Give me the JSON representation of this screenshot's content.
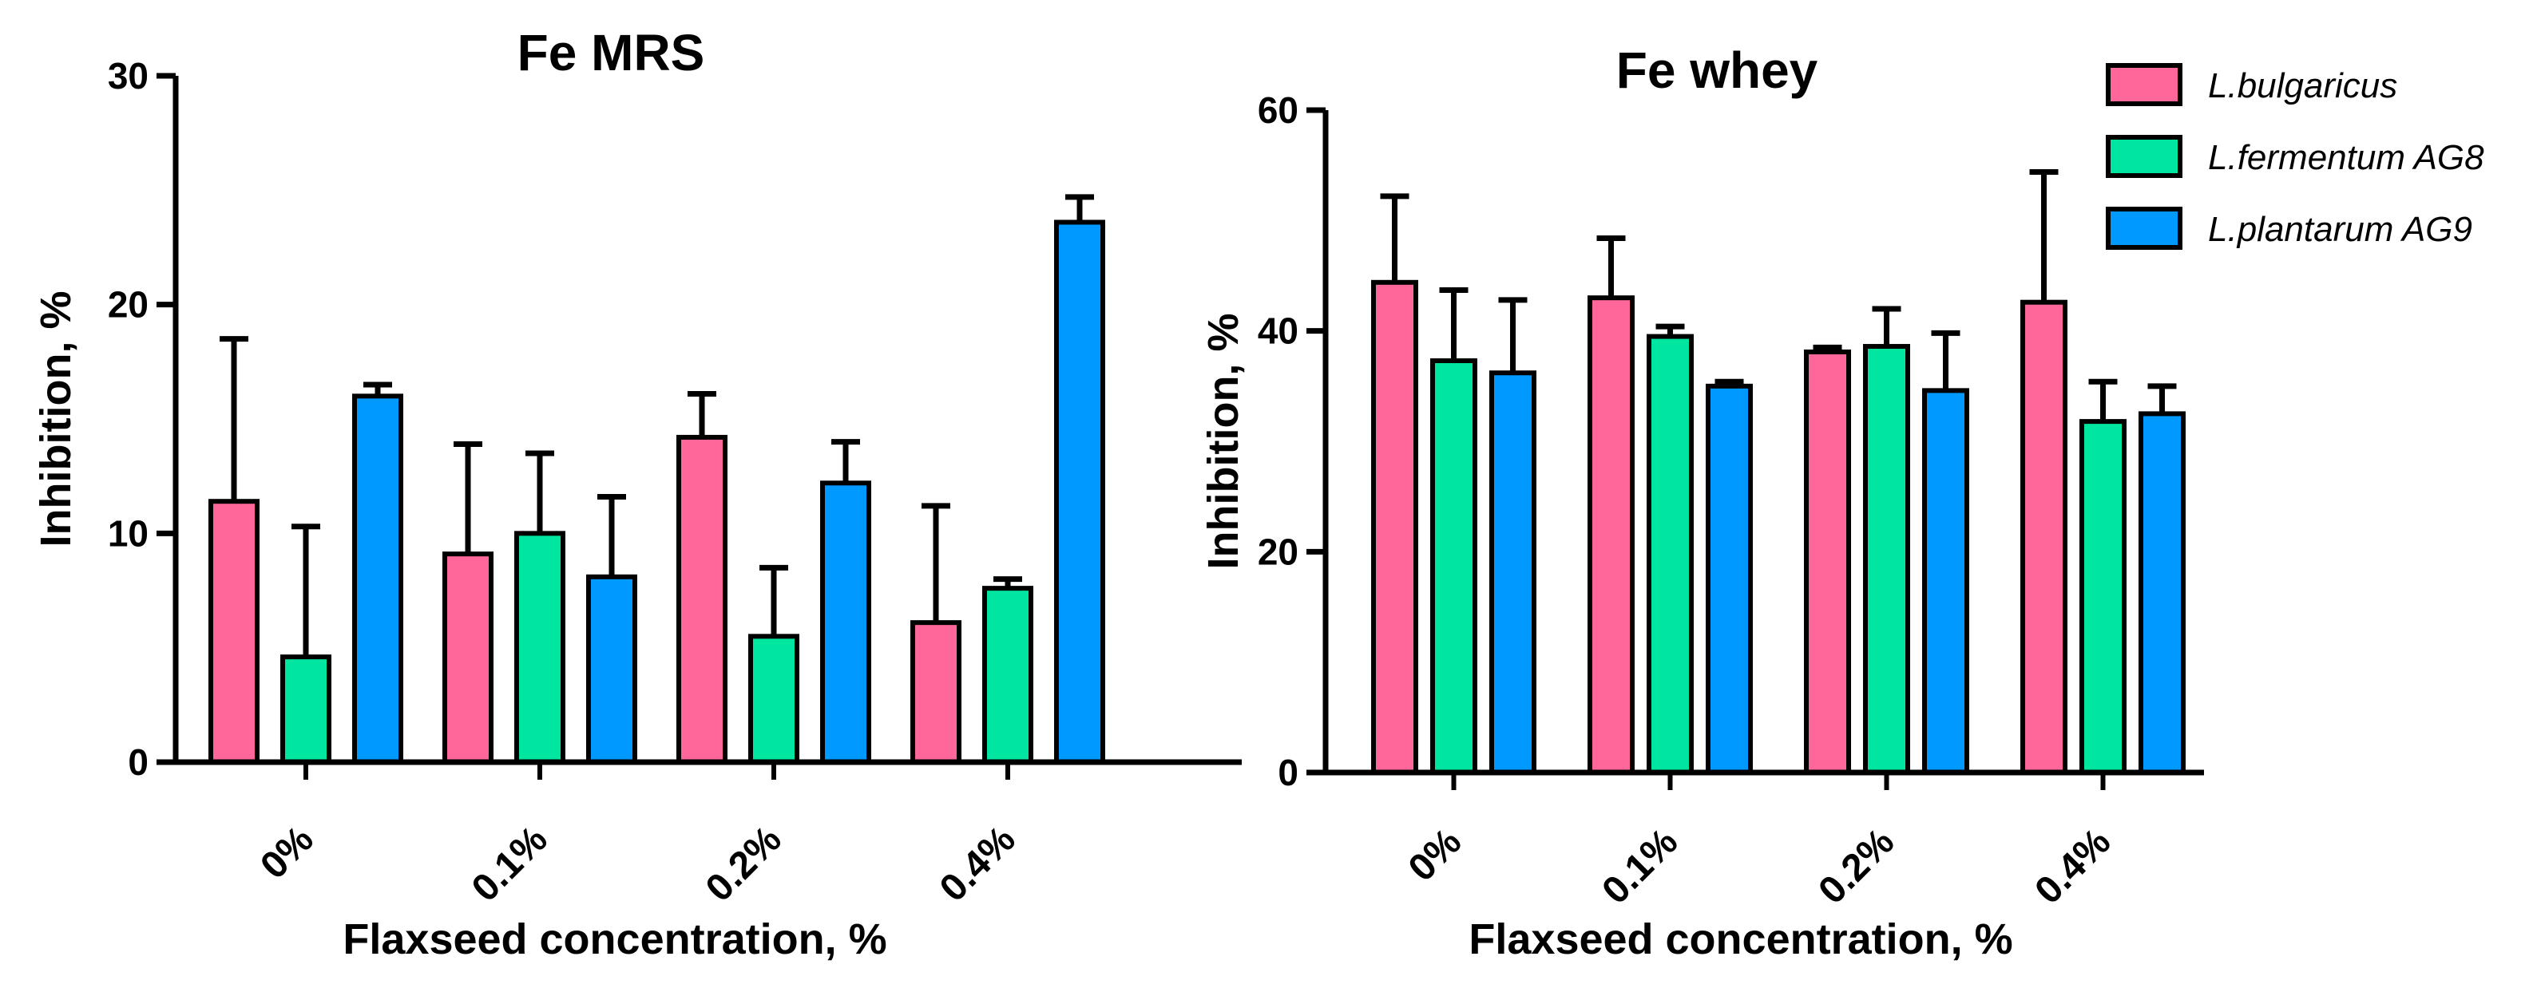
{
  "chart_data": [
    {
      "type": "bar",
      "title": "Fe MRS",
      "xlabel": "Flaxseed concentration, %",
      "ylabel": "Inhibition, %",
      "ylim": [
        0,
        30
      ],
      "yticks": [
        0,
        10,
        20,
        30
      ],
      "categories": [
        "0%",
        "0.1%",
        "0.2%",
        "0.4%"
      ],
      "series": [
        {
          "name": "L.bulgaricus",
          "color": "#ff6699",
          "values": [
            11.4,
            9.1,
            14.2,
            6.1
          ],
          "errors": [
            7.1,
            4.8,
            1.9,
            5.1
          ]
        },
        {
          "name": "L.fermentum AG8",
          "color": "#00e6a1",
          "values": [
            4.6,
            10.0,
            5.5,
            7.6
          ],
          "errors": [
            5.7,
            3.5,
            3.0,
            0.4
          ]
        },
        {
          "name": "L.plantarum AG9",
          "color": "#0099ff",
          "values": [
            16.0,
            8.1,
            12.2,
            23.6
          ],
          "errors": [
            0.5,
            3.5,
            1.8,
            1.1
          ]
        }
      ]
    },
    {
      "type": "bar",
      "title": "Fe whey",
      "xlabel": "Flaxseed concentration, %",
      "ylabel": "Inhibition, %",
      "ylim": [
        0,
        60
      ],
      "yticks": [
        0,
        20,
        40,
        60
      ],
      "categories": [
        "0%",
        "0.1%",
        "0.2%",
        "0.4%"
      ],
      "series": [
        {
          "name": "L.bulgaricus",
          "color": "#ff6699",
          "values": [
            44.4,
            43.0,
            38.1,
            42.6
          ],
          "errors": [
            7.8,
            5.4,
            0.4,
            11.8
          ]
        },
        {
          "name": "L.fermentum AG8",
          "color": "#00e6a1",
          "values": [
            37.3,
            39.5,
            38.6,
            31.8
          ],
          "errors": [
            6.4,
            0.9,
            3.4,
            3.6
          ]
        },
        {
          "name": "L.plantarum AG9",
          "color": "#0099ff",
          "values": [
            36.2,
            35.0,
            34.6,
            32.5
          ],
          "errors": [
            6.6,
            0.4,
            5.2,
            2.5
          ]
        }
      ],
      "legend": {
        "position": "top-right"
      }
    }
  ]
}
